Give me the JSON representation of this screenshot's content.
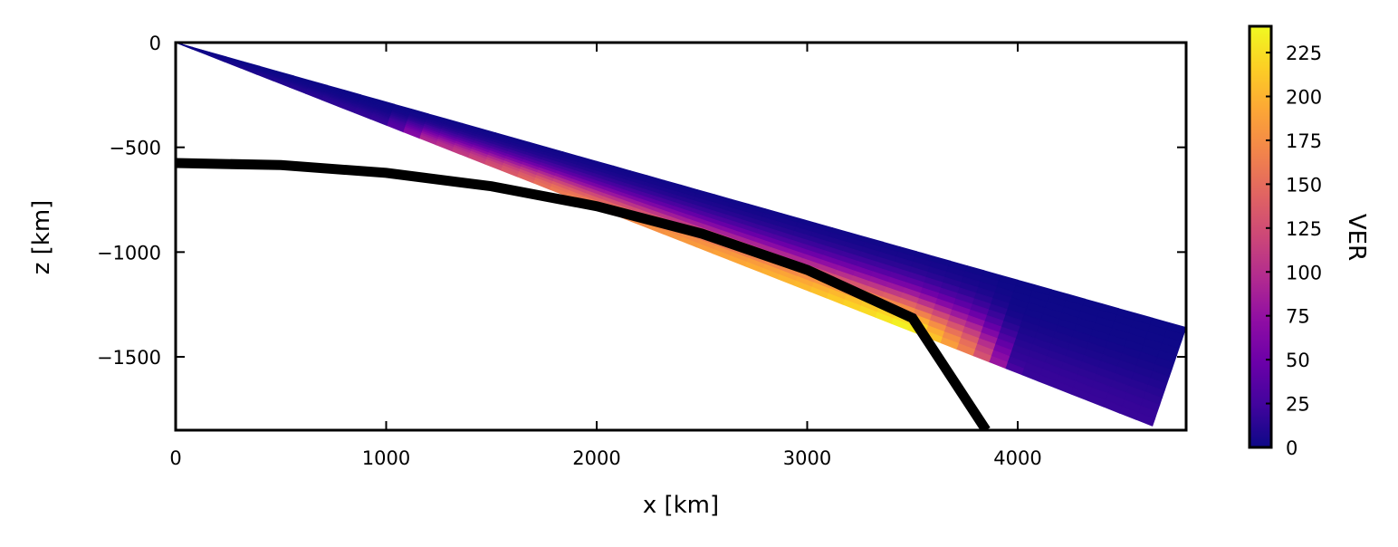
{
  "chart_data": {
    "type": "heatmap",
    "xlabel": "x [km]",
    "ylabel": "z [km]",
    "xlim": [
      0,
      4800
    ],
    "ylim": [
      -1850,
      0
    ],
    "xticks": [
      0,
      1000,
      2000,
      3000,
      4000
    ],
    "xtick_labels": [
      "0",
      "1000",
      "2000",
      "3000",
      "4000"
    ],
    "yticks": [
      0,
      -500,
      -1000,
      -1500
    ],
    "ytick_labels": [
      "0",
      "−500",
      "−1000",
      "−1500"
    ],
    "colorbar": {
      "label": "VER",
      "range": [
        0,
        240
      ],
      "ticks": [
        0,
        25,
        50,
        75,
        100,
        125,
        150,
        175,
        200,
        225
      ],
      "tick_labels": [
        "0",
        "25",
        "50",
        "75",
        "100",
        "125",
        "150",
        "175",
        "200",
        "225"
      ],
      "colormap": "plasma"
    },
    "surface_curve": {
      "description_shown": "black arc",
      "points": [
        [
          0,
          -575
        ],
        [
          500,
          -585
        ],
        [
          1000,
          -622
        ],
        [
          1500,
          -686
        ],
        [
          2000,
          -781
        ],
        [
          2500,
          -912
        ],
        [
          3000,
          -1085
        ],
        [
          3500,
          -1315
        ],
        [
          3850,
          -1850
        ]
      ],
      "color": "#000000"
    },
    "emission_field": {
      "ray_origin": [
        0,
        0
      ],
      "upper_edge_end": [
        4800,
        -1360
      ],
      "lower_edge_end": [
        4640,
        -1830
      ],
      "right_edge": [
        [
          4800,
          -1360
        ],
        [
          4640,
          -1830
        ]
      ],
      "peak": {
        "x": 3500,
        "z": -1410,
        "value": 240
      },
      "values_along_peak": [
        {
          "x": 1000,
          "value": 20
        },
        {
          "x": 1200,
          "value": 95
        },
        {
          "x": 1400,
          "value": 115
        },
        {
          "x": 1800,
          "value": 160
        },
        {
          "x": 2200,
          "value": 175
        },
        {
          "x": 2600,
          "value": 190
        },
        {
          "x": 3000,
          "value": 205
        },
        {
          "x": 3300,
          "value": 225
        },
        {
          "x": 3500,
          "value": 240
        },
        {
          "x": 3800,
          "value": 150
        },
        {
          "x": 4000,
          "value": 20
        }
      ],
      "background_value": 0
    }
  }
}
